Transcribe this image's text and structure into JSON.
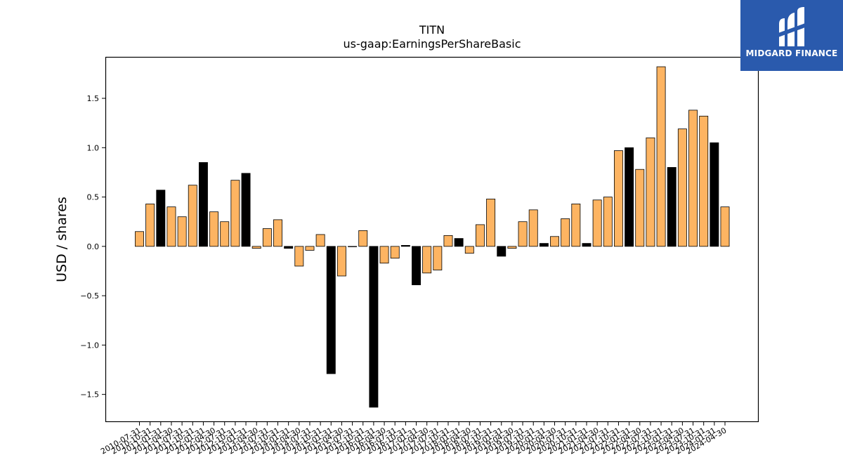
{
  "brand": {
    "name": "MIDGARD FINANCE",
    "bg_color": "#2a5aad"
  },
  "chart_data": {
    "type": "bar",
    "title": "TITN",
    "subtitle": "us-gaap:EarningsPerShareBasic",
    "xlabel": "",
    "ylabel": "USD / shares",
    "ylim": [
      -1.78,
      1.92
    ],
    "yticks": [
      -1.5,
      -1.0,
      -0.5,
      0.0,
      0.5,
      1.0,
      1.5
    ],
    "ytick_labels": [
      "−1.5",
      "−1.0",
      "−0.5",
      "0.0",
      "0.5",
      "1.0",
      "1.5"
    ],
    "colors": {
      "quarter": "#fdb462",
      "annual": "#000000",
      "edge": "#000000"
    },
    "grid": false,
    "legend": "none",
    "categories": [
      "2010-07-31",
      "2010-10-31",
      "2011-01-31",
      "2011-04-30",
      "2011-07-31",
      "2011-10-31",
      "2012-01-31",
      "2012-04-30",
      "2012-07-31",
      "2012-10-31",
      "2013-01-31",
      "2013-04-30",
      "2013-07-31",
      "2013-10-31",
      "2014-01-31",
      "2014-04-30",
      "2014-07-31",
      "2014-10-31",
      "2015-01-31",
      "2015-04-30",
      "2015-07-31",
      "2015-10-31",
      "2016-01-31",
      "2016-04-30",
      "2016-07-31",
      "2016-10-31",
      "2017-01-31",
      "2017-04-30",
      "2017-07-31",
      "2017-10-31",
      "2018-01-31",
      "2018-04-30",
      "2018-07-31",
      "2018-10-31",
      "2019-01-31",
      "2019-04-30",
      "2019-07-31",
      "2019-10-31",
      "2020-01-31",
      "2020-04-30",
      "2020-07-31",
      "2020-10-31",
      "2021-01-31",
      "2021-04-30",
      "2021-07-31",
      "2021-10-31",
      "2022-01-31",
      "2022-04-30",
      "2022-07-31",
      "2022-10-31",
      "2023-01-31",
      "2023-04-30",
      "2023-07-31",
      "2023-10-31",
      "2024-01-31",
      "2024-04-30"
    ],
    "values": [
      0.15,
      0.43,
      0.57,
      0.4,
      0.3,
      0.62,
      0.85,
      0.35,
      0.25,
      0.67,
      0.74,
      -0.02,
      0.18,
      0.27,
      -0.02,
      -0.2,
      -0.04,
      0.12,
      -1.29,
      -0.3,
      0.0,
      0.16,
      -1.63,
      -0.17,
      -0.12,
      0.01,
      -0.39,
      -0.27,
      -0.24,
      0.11,
      0.08,
      -0.07,
      0.22,
      0.48,
      -0.1,
      -0.02,
      0.25,
      0.37,
      0.03,
      0.1,
      0.28,
      0.43,
      0.03,
      0.47,
      0.5,
      0.97,
      1.0,
      0.78,
      1.1,
      1.82,
      0.8,
      1.19,
      1.38,
      1.32,
      1.05,
      0.4
    ],
    "is_annual": [
      false,
      false,
      true,
      false,
      false,
      false,
      true,
      false,
      false,
      false,
      true,
      false,
      false,
      false,
      true,
      false,
      false,
      false,
      true,
      false,
      false,
      false,
      true,
      false,
      false,
      true,
      true,
      false,
      false,
      false,
      true,
      false,
      false,
      false,
      true,
      false,
      false,
      false,
      true,
      false,
      false,
      false,
      true,
      false,
      false,
      false,
      true,
      false,
      false,
      false,
      true,
      false,
      false,
      false,
      true,
      false
    ]
  }
}
